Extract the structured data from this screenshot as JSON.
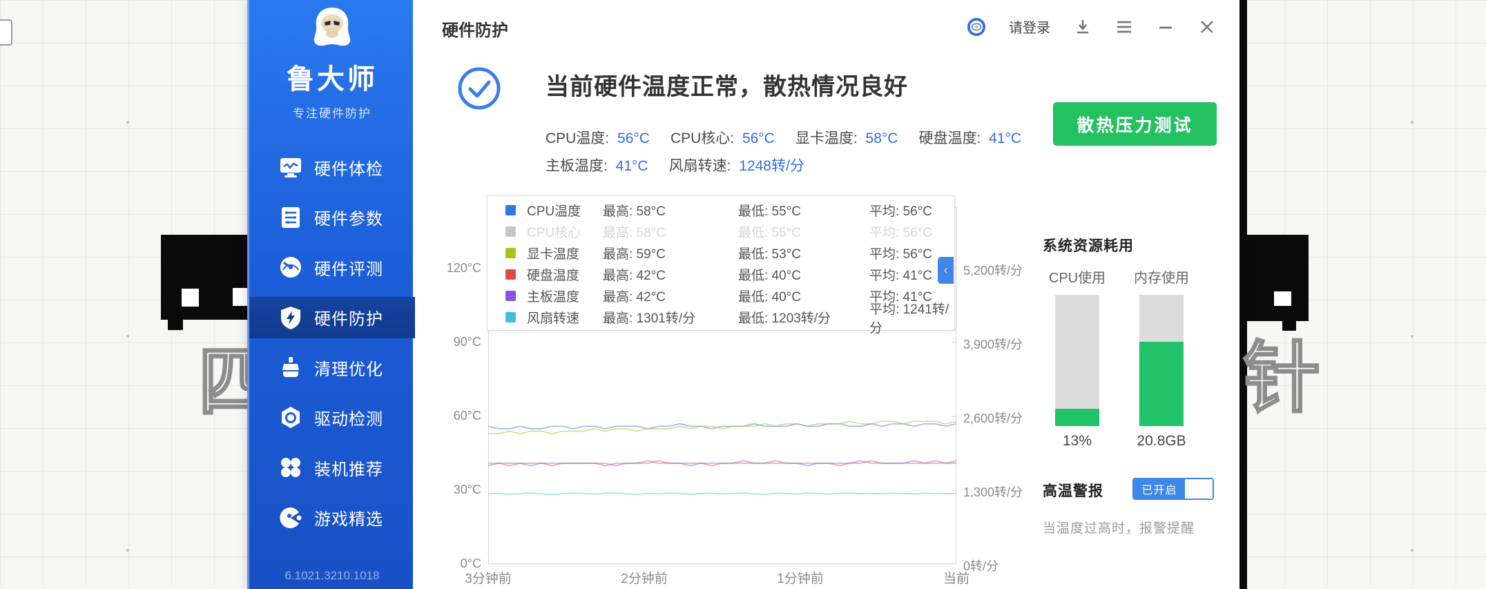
{
  "header": {
    "title": "硬件防护",
    "login": "请登录"
  },
  "sidebar": {
    "logo_title": "鲁大师",
    "logo_subtitle": "专注硬件防护",
    "items": [
      {
        "label": "硬件体检",
        "icon": "monitor-icon",
        "active": false
      },
      {
        "label": "硬件参数",
        "icon": "params-icon",
        "active": false
      },
      {
        "label": "硬件评测",
        "icon": "gauge-icon",
        "active": false
      },
      {
        "label": "硬件防护",
        "icon": "shield-icon",
        "active": true
      },
      {
        "label": "清理优化",
        "icon": "clean-icon",
        "active": false
      },
      {
        "label": "驱动检测",
        "icon": "driver-icon",
        "active": false
      },
      {
        "label": "装机推荐",
        "icon": "install-icon",
        "active": false
      },
      {
        "label": "游戏精选",
        "icon": "game-icon",
        "active": false
      }
    ],
    "version": "6.1021.3210.1018"
  },
  "status": {
    "headline": "当前硬件温度正常，散热情况良好",
    "metrics": [
      {
        "label": "CPU温度",
        "value": "56°C"
      },
      {
        "label": "CPU核心",
        "value": "56°C"
      },
      {
        "label": "显卡温度",
        "value": "58°C"
      },
      {
        "label": "硬盘温度",
        "value": "41°C"
      },
      {
        "label": "主板温度",
        "value": "41°C"
      },
      {
        "label": "风扇转速",
        "value": "1248转/分"
      }
    ]
  },
  "actions": {
    "stress_test": "散热压力测试"
  },
  "legend": {
    "col_labels": {
      "max": "最高",
      "min": "最低",
      "avg": "平均"
    },
    "rows": [
      {
        "name": "CPU温度",
        "color": "#2b7ae4",
        "max": "58°C",
        "min": "55°C",
        "avg": "56°C",
        "disabled": false
      },
      {
        "name": "CPU核心",
        "color": "#c6c6c6",
        "max": "58°C",
        "min": "55°C",
        "avg": "56°C",
        "disabled": true
      },
      {
        "name": "显卡温度",
        "color": "#a6c616",
        "max": "59°C",
        "min": "53°C",
        "avg": "56°C",
        "disabled": false
      },
      {
        "name": "硬盘温度",
        "color": "#e04a4a",
        "max": "42°C",
        "min": "40°C",
        "avg": "41°C",
        "disabled": false
      },
      {
        "name": "主板温度",
        "color": "#8a52e6",
        "max": "42°C",
        "min": "40°C",
        "avg": "41°C",
        "disabled": false
      },
      {
        "name": "风扇转速",
        "color": "#3fc0df",
        "max": "1301转/分",
        "min": "1203转/分",
        "avg": "1241转/分",
        "disabled": false
      }
    ]
  },
  "chart_data": {
    "type": "line",
    "x_labels": [
      "3分钟前",
      "2分钟前",
      "1分钟前",
      "当前"
    ],
    "left_axis": {
      "unit": "°C",
      "ticks": [
        "120°C",
        "90°C",
        "60°C",
        "30°C",
        "0°C"
      ],
      "tick_values": [
        120,
        90,
        60,
        30,
        0
      ],
      "scale_max": 145
    },
    "right_axis": {
      "unit": "转/分",
      "ticks": [
        "5,200转/分",
        "3,900转/分",
        "2,600转/分",
        "1,300转/分",
        "0转/分"
      ],
      "tick_values": [
        5200,
        3900,
        2600,
        1300,
        0
      ],
      "scale_max": 6281
    },
    "grid": false,
    "legend_position": "top-overlay",
    "series": [
      {
        "name": "CPU温度",
        "color": "#2b7ae4",
        "axis": "left",
        "hidden": false,
        "values": [
          56,
          55,
          55,
          56,
          55,
          55,
          56,
          56,
          55,
          56,
          56,
          55,
          56,
          56,
          56,
          55,
          56,
          56,
          57,
          56,
          56,
          55,
          56,
          56,
          56,
          57,
          56,
          56,
          56,
          57,
          56,
          56,
          57,
          57,
          56,
          56,
          57,
          56,
          57,
          57,
          56,
          57,
          57,
          56,
          57
        ]
      },
      {
        "name": "CPU核心",
        "color": "#c6c6c6",
        "axis": "left",
        "hidden": true,
        "values": [
          56,
          55,
          55,
          56,
          55,
          55,
          56,
          56,
          55,
          56,
          56,
          55,
          56,
          56,
          56,
          55,
          56,
          56,
          57,
          56,
          56,
          55,
          56,
          56,
          56,
          57,
          56,
          56,
          56,
          57,
          56,
          56,
          57,
          57,
          56,
          56,
          57,
          56,
          57,
          57,
          56,
          57,
          57,
          56,
          57
        ]
      },
      {
        "name": "显卡温度",
        "color": "#a6c616",
        "axis": "left",
        "hidden": false,
        "values": [
          53,
          53,
          54,
          53,
          54,
          54,
          53,
          54,
          54,
          54,
          55,
          54,
          55,
          55,
          54,
          55,
          55,
          55,
          56,
          55,
          56,
          56,
          55,
          56,
          56,
          56,
          57,
          56,
          57,
          57,
          56,
          57,
          57,
          57,
          58,
          57,
          57,
          58,
          58,
          57,
          58,
          58,
          58,
          57,
          58
        ]
      },
      {
        "name": "硬盘温度",
        "color": "#e04a4a",
        "axis": "left",
        "hidden": false,
        "values": [
          41,
          41,
          40,
          41,
          41,
          41,
          40,
          41,
          41,
          41,
          41,
          40,
          41,
          41,
          41,
          41,
          42,
          41,
          41,
          41,
          41,
          40,
          41,
          41,
          41,
          41,
          41,
          42,
          41,
          41,
          41,
          41,
          41,
          40,
          41,
          41,
          42,
          41,
          41,
          41,
          41,
          41,
          42,
          41,
          41
        ]
      },
      {
        "name": "主板温度",
        "color": "#8a52e6",
        "axis": "left",
        "hidden": false,
        "values": [
          40,
          41,
          41,
          41,
          40,
          41,
          41,
          41,
          41,
          41,
          41,
          41,
          40,
          41,
          41,
          42,
          41,
          41,
          41,
          40,
          41,
          41,
          41,
          41,
          42,
          41,
          41,
          41,
          41,
          41,
          40,
          41,
          41,
          41,
          41,
          42,
          41,
          41,
          41,
          41,
          42,
          41,
          41,
          41,
          42
        ]
      },
      {
        "name": "风扇转速",
        "color": "#3fc0df",
        "axis": "right",
        "hidden": false,
        "values": [
          1238,
          1245,
          1228,
          1240,
          1252,
          1235,
          1222,
          1240,
          1250,
          1243,
          1232,
          1246,
          1255,
          1238,
          1230,
          1244,
          1236,
          1250,
          1242,
          1228,
          1240,
          1248,
          1235,
          1242,
          1252,
          1238,
          1230,
          1245,
          1240,
          1236,
          1248,
          1242,
          1232,
          1244,
          1250,
          1238,
          1242,
          1236,
          1246,
          1240,
          1234,
          1248,
          1242,
          1238,
          1244
        ]
      }
    ]
  },
  "resources": {
    "title": "系统资源耗用",
    "bars": [
      {
        "label": "CPU使用",
        "value": "13%",
        "percent": 13
      },
      {
        "label": "内存使用",
        "value": "20.8GB",
        "percent": 64
      }
    ]
  },
  "alarm": {
    "title": "高温警报",
    "state_label": "已开启",
    "enabled": true,
    "description": "当温度过高时，报警提醒"
  },
  "background": {
    "left_char": "四",
    "right_char": "针"
  }
}
